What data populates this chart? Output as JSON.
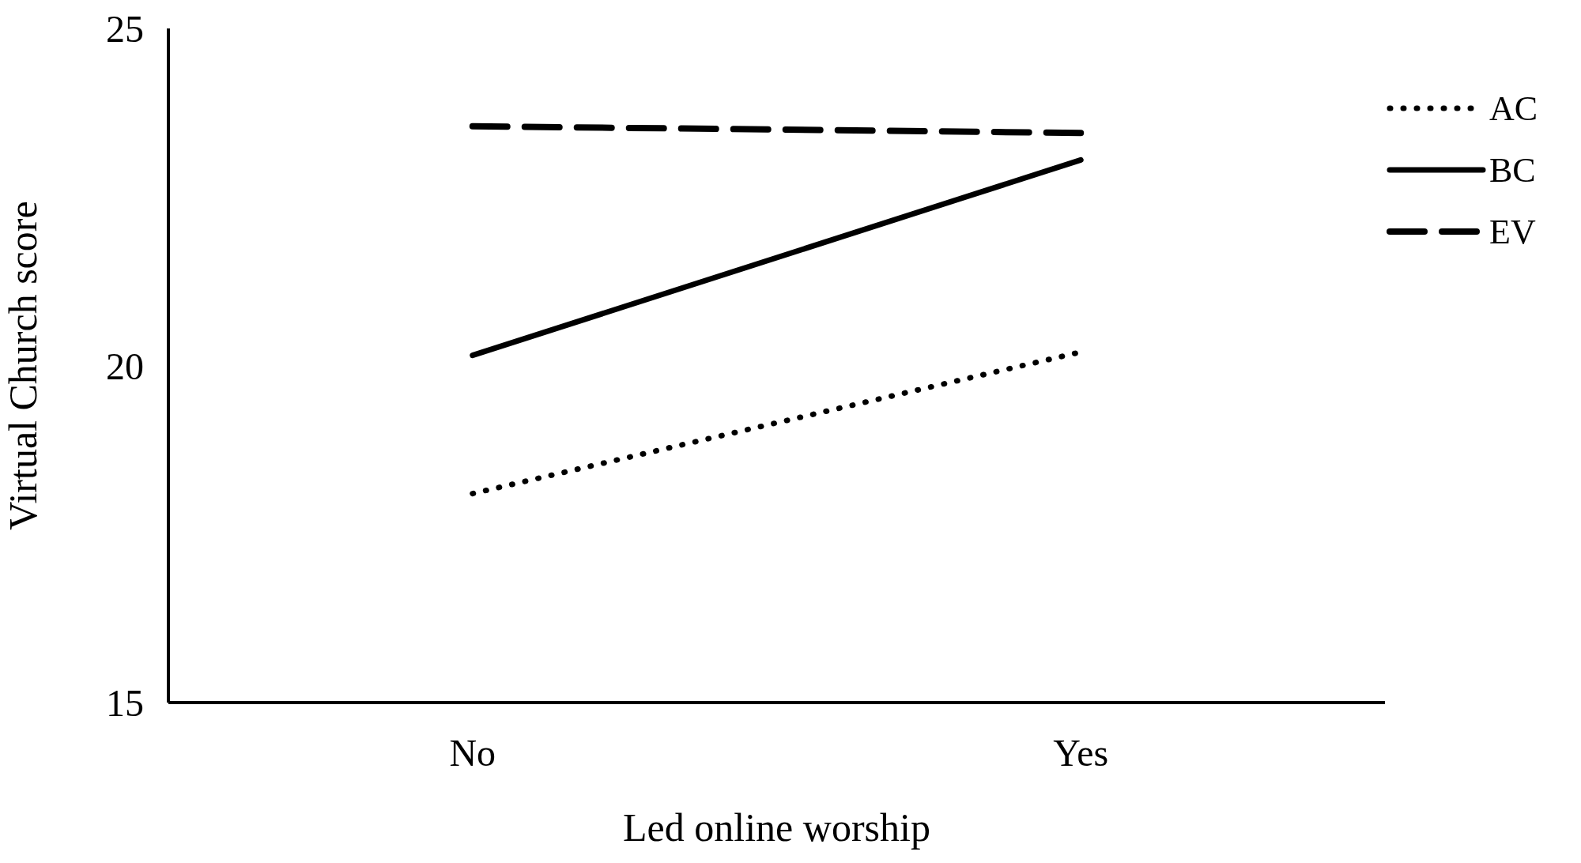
{
  "chart_data": {
    "type": "line",
    "xlabel": "Led online worship",
    "ylabel": "Virtual Church score",
    "categories": [
      "No",
      "Yes"
    ],
    "series": [
      {
        "name": "AC",
        "color": "#000000",
        "line_style": "dotted",
        "values": [
          18.1,
          20.2
        ]
      },
      {
        "name": "BC",
        "color": "#000000",
        "line_style": "solid",
        "values": [
          20.15,
          23.05
        ]
      },
      {
        "name": "EV",
        "color": "#000000",
        "line_style": "dashed",
        "values": [
          23.55,
          23.45
        ]
      }
    ],
    "ylim": [
      15,
      25
    ],
    "yticks": [
      15,
      20,
      25
    ],
    "grid": false,
    "legend": "top right",
    "marker": "none"
  }
}
